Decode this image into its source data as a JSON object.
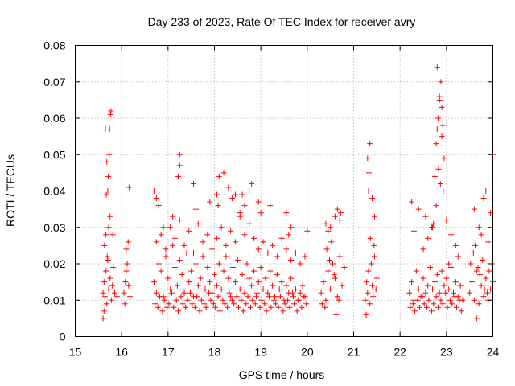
{
  "chart_data": {
    "type": "scatter",
    "title": "Day 233 of 2023, Rate Of TEC Index for receiver avry",
    "xlabel": "GPS time / hours",
    "ylabel": "ROTI / TECUs",
    "xlim": [
      15,
      24
    ],
    "ylim": [
      0,
      0.08
    ],
    "xticks": [
      15,
      16,
      17,
      18,
      19,
      20,
      21,
      22,
      23,
      24
    ],
    "xtick_labels": [
      "15",
      "16",
      "17",
      "18",
      "19",
      "20",
      "21",
      "22",
      "23",
      "24"
    ],
    "yticks": [
      0,
      0.01,
      0.02,
      0.03,
      0.04,
      0.05,
      0.06,
      0.07,
      0.08
    ],
    "ytick_labels": [
      "0",
      "0.01",
      "0.02",
      "0.03",
      "0.04",
      "0.05",
      "0.06",
      "0.07",
      "0.08"
    ],
    "grid": true,
    "marker": "+",
    "color": "#ff0000",
    "series": [
      {
        "name": "ROTI",
        "x": [
          15.6,
          15.62,
          15.64,
          15.66,
          15.68,
          15.7,
          15.72,
          15.75,
          15.78,
          15.8,
          15.82,
          15.85,
          15.9,
          15.63,
          15.66,
          15.69,
          15.72,
          15.75,
          15.74,
          15.76,
          15.65,
          15.68,
          15.71,
          15.73,
          15.6,
          15.67,
          15.7,
          15.77,
          15.81,
          15.62,
          16.05,
          16.08,
          16.1,
          16.12,
          16.15,
          16.18,
          16.1,
          16.14,
          16.07,
          16.16,
          16.7,
          16.75,
          16.8,
          16.85,
          16.9,
          16.95,
          17.0,
          17.05,
          17.1,
          17.15,
          17.2,
          17.25,
          17.3,
          17.35,
          17.4,
          17.45,
          17.5,
          17.55,
          17.6,
          17.65,
          17.7,
          17.75,
          17.8,
          17.85,
          17.9,
          17.95,
          18.0,
          18.05,
          18.1,
          18.15,
          18.2,
          18.25,
          18.3,
          18.35,
          18.4,
          18.45,
          18.5,
          18.55,
          18.6,
          18.65,
          18.7,
          18.75,
          18.8,
          18.85,
          18.9,
          18.95,
          19.0,
          19.05,
          19.1,
          19.15,
          19.2,
          19.25,
          19.3,
          19.35,
          19.4,
          19.45,
          19.5,
          19.55,
          19.6,
          19.65,
          19.7,
          19.75,
          19.8,
          19.85,
          19.9,
          19.95,
          16.72,
          16.78,
          16.82,
          16.88,
          16.92,
          16.98,
          17.02,
          17.08,
          17.12,
          17.18,
          17.22,
          17.28,
          17.32,
          17.38,
          17.42,
          17.48,
          17.52,
          17.58,
          17.62,
          17.68,
          17.72,
          17.78,
          17.82,
          17.88,
          17.92,
          17.98,
          18.02,
          18.08,
          18.12,
          18.18,
          18.22,
          18.28,
          18.32,
          18.38,
          18.42,
          18.48,
          18.52,
          18.58,
          18.62,
          18.68,
          18.72,
          18.78,
          18.82,
          18.88,
          18.92,
          18.98,
          19.02,
          19.08,
          19.12,
          19.18,
          19.22,
          19.28,
          19.32,
          19.38,
          19.42,
          19.48,
          19.52,
          19.58,
          19.62,
          19.68,
          19.72,
          19.78,
          19.82,
          19.88,
          19.92,
          19.98,
          16.75,
          16.85,
          16.95,
          17.05,
          17.15,
          17.25,
          17.35,
          17.45,
          17.55,
          17.65,
          17.75,
          17.85,
          17.95,
          18.05,
          18.15,
          18.25,
          18.35,
          18.45,
          18.55,
          18.65,
          18.75,
          18.85,
          18.95,
          19.05,
          19.15,
          19.25,
          19.35,
          19.45,
          19.55,
          19.65,
          19.75,
          19.85,
          19.95,
          16.7,
          16.75,
          16.8,
          17.25,
          17.25,
          17.22,
          17.55,
          17.6,
          17.9,
          18.05,
          18.08,
          18.2,
          18.3,
          18.38,
          18.55,
          18.6,
          18.75,
          18.8,
          18.65,
          18.95,
          19.0,
          19.2,
          19.55,
          19.6,
          19.65,
          20.0,
          17.1,
          16.9,
          18.1,
          18.45,
          20.3,
          20.35,
          20.4,
          20.45,
          20.5,
          20.55,
          20.6,
          20.65,
          20.7,
          20.75,
          20.8,
          20.32,
          20.38,
          20.42,
          20.48,
          20.52,
          20.58,
          20.62,
          20.68,
          20.72,
          20.4,
          20.5,
          20.6,
          20.65,
          20.7,
          20.45,
          21.25,
          21.28,
          21.3,
          21.32,
          21.35,
          21.38,
          21.4,
          21.42,
          21.45,
          21.48,
          21.5,
          21.32,
          21.35,
          21.3,
          21.33,
          21.4,
          21.45,
          21.27,
          21.36,
          21.44,
          22.2,
          22.25,
          22.3,
          22.35,
          22.4,
          22.45,
          22.5,
          22.55,
          22.6,
          22.65,
          22.7,
          22.75,
          22.8,
          22.85,
          22.9,
          22.95,
          23.0,
          23.05,
          23.1,
          23.15,
          23.2,
          23.25,
          23.3,
          23.35,
          22.22,
          22.28,
          22.32,
          22.38,
          22.42,
          22.48,
          22.52,
          22.58,
          22.62,
          22.68,
          22.72,
          22.78,
          22.82,
          22.88,
          22.92,
          22.98,
          23.02,
          23.08,
          23.12,
          23.18,
          23.22,
          23.28,
          23.32,
          22.25,
          22.3,
          22.4,
          22.5,
          22.55,
          22.6,
          22.7,
          22.75,
          22.78,
          22.8,
          22.82,
          22.85,
          22.88,
          22.9,
          22.92,
          22.95,
          22.8,
          22.85,
          22.9,
          22.83,
          22.87,
          22.93,
          22.78,
          23.0,
          23.1,
          23.2,
          23.25,
          22.72,
          22.68,
          23.05,
          23.5,
          23.55,
          23.6,
          23.65,
          23.7,
          23.75,
          23.8,
          23.85,
          23.9,
          23.95,
          24.0,
          23.52,
          23.58,
          23.62,
          23.68,
          23.72,
          23.78,
          23.82,
          23.88,
          23.92,
          23.98,
          23.6,
          23.7,
          23.75,
          23.8,
          23.9,
          23.95,
          24.0,
          23.65,
          23.85
        ],
        "y": [
          0.012,
          0.015,
          0.011,
          0.018,
          0.009,
          0.021,
          0.013,
          0.016,
          0.01,
          0.014,
          0.019,
          0.012,
          0.011,
          0.025,
          0.028,
          0.022,
          0.03,
          0.033,
          0.057,
          0.061,
          0.057,
          0.048,
          0.044,
          0.05,
          0.005,
          0.039,
          0.04,
          0.062,
          0.028,
          0.007,
          0.012,
          0.015,
          0.018,
          0.02,
          0.014,
          0.011,
          0.024,
          0.026,
          0.009,
          0.041,
          0.015,
          0.012,
          0.02,
          0.018,
          0.011,
          0.022,
          0.016,
          0.013,
          0.025,
          0.019,
          0.014,
          0.021,
          0.017,
          0.012,
          0.023,
          0.015,
          0.018,
          0.011,
          0.02,
          0.014,
          0.016,
          0.022,
          0.013,
          0.019,
          0.015,
          0.012,
          0.017,
          0.014,
          0.02,
          0.013,
          0.018,
          0.022,
          0.016,
          0.011,
          0.019,
          0.015,
          0.021,
          0.013,
          0.017,
          0.012,
          0.02,
          0.016,
          0.014,
          0.018,
          0.011,
          0.015,
          0.019,
          0.013,
          0.016,
          0.012,
          0.018,
          0.014,
          0.011,
          0.017,
          0.013,
          0.015,
          0.01,
          0.014,
          0.012,
          0.016,
          0.011,
          0.013,
          0.01,
          0.012,
          0.014,
          0.011,
          0.009,
          0.008,
          0.011,
          0.007,
          0.01,
          0.008,
          0.009,
          0.012,
          0.008,
          0.01,
          0.007,
          0.011,
          0.009,
          0.008,
          0.01,
          0.012,
          0.009,
          0.008,
          0.011,
          0.007,
          0.01,
          0.009,
          0.008,
          0.012,
          0.01,
          0.009,
          0.008,
          0.011,
          0.007,
          0.01,
          0.009,
          0.008,
          0.012,
          0.01,
          0.009,
          0.011,
          0.008,
          0.01,
          0.007,
          0.009,
          0.011,
          0.008,
          0.01,
          0.009,
          0.012,
          0.008,
          0.01,
          0.009,
          0.007,
          0.011,
          0.008,
          0.01,
          0.009,
          0.008,
          0.011,
          0.007,
          0.009,
          0.01,
          0.008,
          0.012,
          0.009,
          0.007,
          0.01,
          0.008,
          0.011,
          0.009,
          0.026,
          0.028,
          0.024,
          0.03,
          0.027,
          0.032,
          0.025,
          0.029,
          0.023,
          0.031,
          0.026,
          0.028,
          0.024,
          0.027,
          0.03,
          0.025,
          0.029,
          0.026,
          0.033,
          0.028,
          0.031,
          0.027,
          0.024,
          0.026,
          0.023,
          0.025,
          0.022,
          0.027,
          0.024,
          0.021,
          0.023,
          0.02,
          0.022,
          0.04,
          0.038,
          0.036,
          0.05,
          0.047,
          0.044,
          0.042,
          0.035,
          0.037,
          0.039,
          0.036,
          0.045,
          0.041,
          0.038,
          0.034,
          0.039,
          0.04,
          0.042,
          0.036,
          0.037,
          0.034,
          0.036,
          0.034,
          0.028,
          0.03,
          0.029,
          0.033,
          0.03,
          0.044,
          0.039,
          0.012,
          0.015,
          0.01,
          0.018,
          0.013,
          0.02,
          0.016,
          0.011,
          0.022,
          0.014,
          0.019,
          0.009,
          0.008,
          0.024,
          0.021,
          0.026,
          0.017,
          0.006,
          0.01,
          0.034,
          0.031,
          0.03,
          0.033,
          0.035,
          0.032,
          0.029,
          0.01,
          0.015,
          0.012,
          0.018,
          0.009,
          0.02,
          0.014,
          0.011,
          0.022,
          0.013,
          0.016,
          0.04,
          0.053,
          0.049,
          0.045,
          0.038,
          0.033,
          0.006,
          0.027,
          0.025,
          0.012,
          0.015,
          0.01,
          0.018,
          0.013,
          0.011,
          0.016,
          0.012,
          0.014,
          0.019,
          0.013,
          0.015,
          0.017,
          0.012,
          0.018,
          0.014,
          0.016,
          0.013,
          0.019,
          0.012,
          0.015,
          0.011,
          0.014,
          0.01,
          0.008,
          0.009,
          0.007,
          0.01,
          0.008,
          0.011,
          0.009,
          0.008,
          0.01,
          0.007,
          0.009,
          0.011,
          0.008,
          0.01,
          0.009,
          0.012,
          0.008,
          0.01,
          0.009,
          0.011,
          0.008,
          0.01,
          0.007,
          0.037,
          0.029,
          0.035,
          0.024,
          0.033,
          0.027,
          0.03,
          0.044,
          0.053,
          0.057,
          0.06,
          0.065,
          0.07,
          0.063,
          0.058,
          0.049,
          0.074,
          0.066,
          0.055,
          0.046,
          0.042,
          0.04,
          0.036,
          0.032,
          0.028,
          0.025,
          0.022,
          0.031,
          0.03,
          0.02,
          0.012,
          0.015,
          0.01,
          0.018,
          0.009,
          0.014,
          0.011,
          0.016,
          0.01,
          0.013,
          0.015,
          0.02,
          0.023,
          0.025,
          0.019,
          0.017,
          0.021,
          0.013,
          0.012,
          0.018,
          0.02,
          0.035,
          0.03,
          0.028,
          0.038,
          0.026,
          0.034,
          0.05,
          0.005,
          0.04
        ]
      }
    ]
  }
}
